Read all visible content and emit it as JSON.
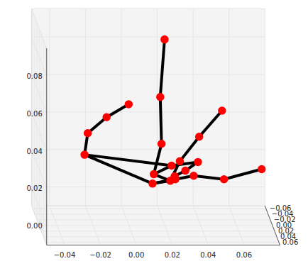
{
  "chart_data": {
    "type": "scatter3d",
    "x": [
      0.0132,
      0.0259,
      0.0361,
      0.053,
      0.074,
      0.0231,
      0.0284,
      0.0392,
      0.0519,
      0.0139,
      0.0182,
      0.0175,
      0.0199,
      0.0238,
      0.0385,
      0.0315,
      0.0255,
      -0.0247,
      -0.0229,
      -0.0124,
      -0.0001
    ],
    "y": [
      0,
      0,
      0,
      0,
      0,
      0,
      0,
      0,
      0,
      0,
      0,
      0,
      0,
      0,
      0,
      0,
      0,
      0,
      0,
      0,
      0
    ],
    "z": [
      0.0123,
      0.0146,
      0.0165,
      0.0146,
      0.02,
      0.0138,
      0.0242,
      0.0373,
      0.0512,
      0.0173,
      0.0335,
      0.0585,
      0.0892,
      0.0219,
      0.0238,
      0.0192,
      0.0162,
      0.0277,
      0.0392,
      0.0477,
      0.0546
    ],
    "connections": [
      [
        0,
        1
      ],
      [
        1,
        2
      ],
      [
        2,
        3
      ],
      [
        3,
        4
      ],
      [
        0,
        5
      ],
      [
        5,
        6
      ],
      [
        6,
        7
      ],
      [
        7,
        8
      ],
      [
        5,
        9
      ],
      [
        9,
        10
      ],
      [
        10,
        11
      ],
      [
        11,
        12
      ],
      [
        9,
        13
      ],
      [
        13,
        14
      ],
      [
        14,
        15
      ],
      [
        15,
        16
      ],
      [
        13,
        17
      ],
      [
        0,
        17
      ],
      [
        17,
        18
      ],
      [
        18,
        19
      ],
      [
        19,
        20
      ]
    ],
    "color": "red",
    "marker": "o",
    "grid": true,
    "xlim": [
      -0.05,
      0.08
    ],
    "ylim": [
      -0.07,
      0.07
    ],
    "zlim": [
      -0.01,
      0.095
    ],
    "xticks": [
      {
        "value": -0.04,
        "label": "−0.04"
      },
      {
        "value": -0.02,
        "label": "−0.02"
      },
      {
        "value": 0,
        "label": "0.00"
      },
      0.02,
      0.04,
      0.06
    ],
    "yticks": [
      {
        "value": -0.06,
        "label": "−0.06"
      },
      {
        "value": -0.04,
        "label": "−0.04"
      },
      {
        "value": -0.02,
        "label": "−0.02"
      },
      {
        "value": 0,
        "label": "0.00"
      },
      0.02,
      0.04,
      0.06
    ],
    "zticks": [
      {
        "value": 0,
        "label": "0.00"
      },
      0.02,
      0.04,
      0.06,
      0.08
    ]
  }
}
